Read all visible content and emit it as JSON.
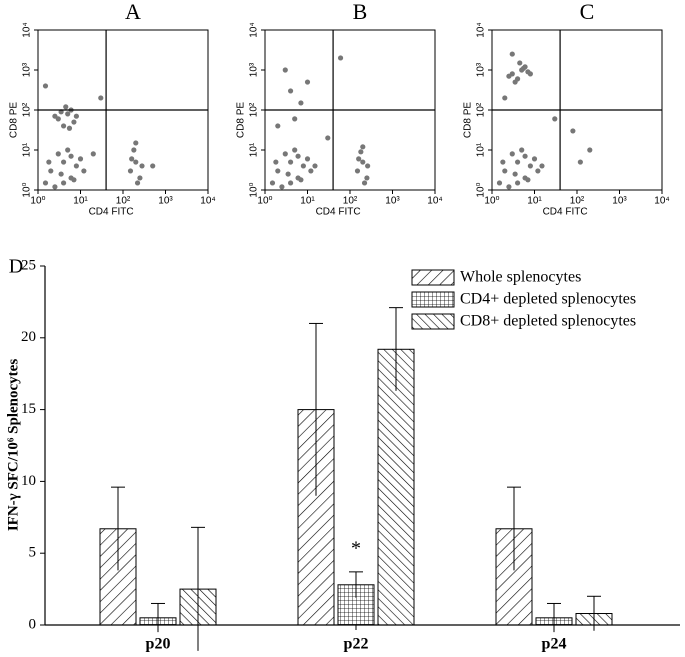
{
  "chart_data": [
    {
      "type": "scatter",
      "title": "A",
      "xlabel": "CD4 FITC",
      "ylabel": "CD8 PE",
      "log": true,
      "color": "#777777",
      "xlim": [
        1,
        10000
      ],
      "ylim": [
        1,
        10000
      ],
      "xticks": [
        {
          "value": 1,
          "label": "10⁰"
        },
        {
          "value": 10,
          "label": "10¹"
        },
        {
          "value": 100,
          "label": "10²"
        },
        {
          "value": 1000,
          "label": "10³"
        },
        {
          "value": 10000,
          "label": "10⁴"
        }
      ],
      "yticks": [
        {
          "value": 1,
          "label": "10⁰"
        },
        {
          "value": 10,
          "label": "10¹"
        },
        {
          "value": 100,
          "label": "10²"
        },
        {
          "value": 1000,
          "label": "10³"
        },
        {
          "value": 10000,
          "label": "10⁴"
        }
      ],
      "quadrant": {
        "x": 40,
        "y": 100
      },
      "x": [
        3,
        5,
        4,
        6,
        2.5,
        7,
        4.5,
        3.5,
        8,
        5.5,
        2,
        4,
        6,
        3,
        8,
        1.5,
        5,
        10,
        2.5,
        7,
        12,
        3.5,
        1.8,
        6,
        4,
        150,
        200,
        250,
        180,
        220,
        160,
        280,
        200,
        20,
        1.5,
        30,
        500
      ],
      "y": [
        60,
        80,
        40,
        100,
        70,
        50,
        120,
        90,
        70,
        35,
        3,
        5,
        2,
        8,
        4,
        1.5,
        10,
        6,
        1.2,
        1.8,
        3,
        2.5,
        5,
        7,
        1.5,
        3,
        5,
        2,
        10,
        1.5,
        6,
        4,
        15,
        8,
        400,
        200,
        4
      ]
    },
    {
      "type": "scatter",
      "title": "B",
      "xlabel": "CD4 FITC",
      "ylabel": "CD8 PE",
      "log": true,
      "color": "#777777",
      "xlim": [
        1,
        10000
      ],
      "ylim": [
        1,
        10000
      ],
      "xticks": [
        {
          "value": 1,
          "label": "10⁰"
        },
        {
          "value": 10,
          "label": "10¹"
        },
        {
          "value": 100,
          "label": "10²"
        },
        {
          "value": 1000,
          "label": "10³"
        },
        {
          "value": 10000,
          "label": "10⁴"
        }
      ],
      "yticks": [
        {
          "value": 1,
          "label": "10⁰"
        },
        {
          "value": 10,
          "label": "10¹"
        },
        {
          "value": 100,
          "label": "10²"
        },
        {
          "value": 1000,
          "label": "10³"
        },
        {
          "value": 10000,
          "label": "10⁴"
        }
      ],
      "quadrant": {
        "x": 40,
        "y": 100
      },
      "x": [
        4,
        7,
        3,
        10,
        5,
        2,
        4,
        6,
        3,
        8,
        1.5,
        5,
        10,
        2.5,
        7,
        12,
        3.5,
        1.8,
        6,
        4,
        15,
        150,
        200,
        250,
        180,
        220,
        160,
        260,
        200,
        30,
        2,
        60
      ],
      "y": [
        300,
        150,
        1000,
        500,
        60,
        3,
        5,
        2,
        8,
        4,
        1.5,
        10,
        6,
        1.2,
        1.8,
        3,
        2.5,
        5,
        7,
        1.5,
        4,
        3,
        5,
        2,
        9,
        1.5,
        6,
        4,
        12,
        20,
        40,
        2000
      ]
    },
    {
      "type": "scatter",
      "title": "C",
      "xlabel": "CD4 FITC",
      "ylabel": "CD8 PE",
      "log": true,
      "color": "#777777",
      "xlim": [
        1,
        10000
      ],
      "ylim": [
        1,
        10000
      ],
      "xticks": [
        {
          "value": 1,
          "label": "10⁰"
        },
        {
          "value": 10,
          "label": "10¹"
        },
        {
          "value": 100,
          "label": "10²"
        },
        {
          "value": 1000,
          "label": "10³"
        },
        {
          "value": 10000,
          "label": "10⁴"
        }
      ],
      "yticks": [
        {
          "value": 1,
          "label": "10⁰"
        },
        {
          "value": 10,
          "label": "10¹"
        },
        {
          "value": 100,
          "label": "10²"
        },
        {
          "value": 1000,
          "label": "10³"
        },
        {
          "value": 10000,
          "label": "10⁴"
        }
      ],
      "quadrant": {
        "x": 40,
        "y": 100
      },
      "x": [
        3,
        5,
        4,
        6,
        2.5,
        7,
        4.5,
        3.5,
        8,
        5.5,
        3,
        2,
        4,
        6,
        3,
        8,
        1.5,
        5,
        10,
        2.5,
        7,
        12,
        3.5,
        1.8,
        6,
        4,
        15,
        80,
        200,
        120,
        2,
        30
      ],
      "y": [
        800,
        1000,
        600,
        1200,
        700,
        900,
        1500,
        500,
        800,
        1100,
        2500,
        3,
        5,
        2,
        8,
        4,
        1.5,
        10,
        6,
        1.2,
        1.8,
        3,
        2.5,
        5,
        7,
        1.5,
        4,
        30,
        10,
        5,
        200,
        60
      ]
    },
    {
      "type": "bar",
      "title": "D",
      "ylabel": "IFN-γ SFC/10⁶ Splenocytes",
      "categories": [
        "p20",
        "p22",
        "p24"
      ],
      "ylim": [
        0,
        25
      ],
      "yticks": [
        0,
        5,
        10,
        15,
        20,
        25
      ],
      "legend": "upper right",
      "series": [
        {
          "name": "Whole splenocytes",
          "hatch": "forward",
          "values": [
            6.7,
            15,
            6.7
          ],
          "errors": [
            2.9,
            6,
            2.9
          ]
        },
        {
          "name": "CD4+ depleted splenocytes",
          "hatch": "grid",
          "values": [
            0.5,
            2.8,
            0.5
          ],
          "errors": [
            1,
            0.9,
            1
          ]
        },
        {
          "name": "CD8+ depleted splenocytes",
          "hatch": "backward",
          "values": [
            2.5,
            19.2,
            0.8
          ],
          "errors": [
            4.3,
            2.9,
            1.2
          ]
        }
      ],
      "annotations": [
        {
          "text": "*",
          "series": 1,
          "category": 1
        }
      ]
    }
  ]
}
